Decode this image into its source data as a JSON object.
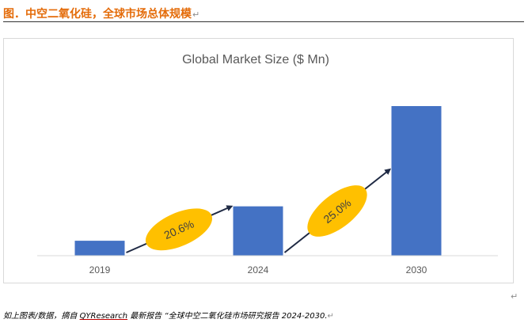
{
  "heading": {
    "text": "图．中空二氧化硅，全球市场总体规模",
    "mark": "↵"
  },
  "chart_data": {
    "type": "bar",
    "title": "Global Market Size ($ Mn)",
    "categories": [
      "2019",
      "2024",
      "2030"
    ],
    "values": [
      100,
      330,
      1000
    ],
    "ylim": [
      0,
      1000
    ],
    "grid": false,
    "bar_color": "#4472c4",
    "annotations": [
      {
        "label": "20.6%",
        "from": "2019",
        "to": "2024",
        "fill": "#ffc000"
      },
      {
        "label": "25.0%",
        "from": "2024",
        "to": "2030",
        "fill": "#ffc000"
      }
    ]
  },
  "end_mark": "↵",
  "caption": {
    "prefix": "如上图表/数据，摘自 ",
    "source": "QYResearch",
    "suffix": " 最新报告 “全球中空二氧化硅市场研究报告 2024-2030.",
    "mark": "↵"
  }
}
